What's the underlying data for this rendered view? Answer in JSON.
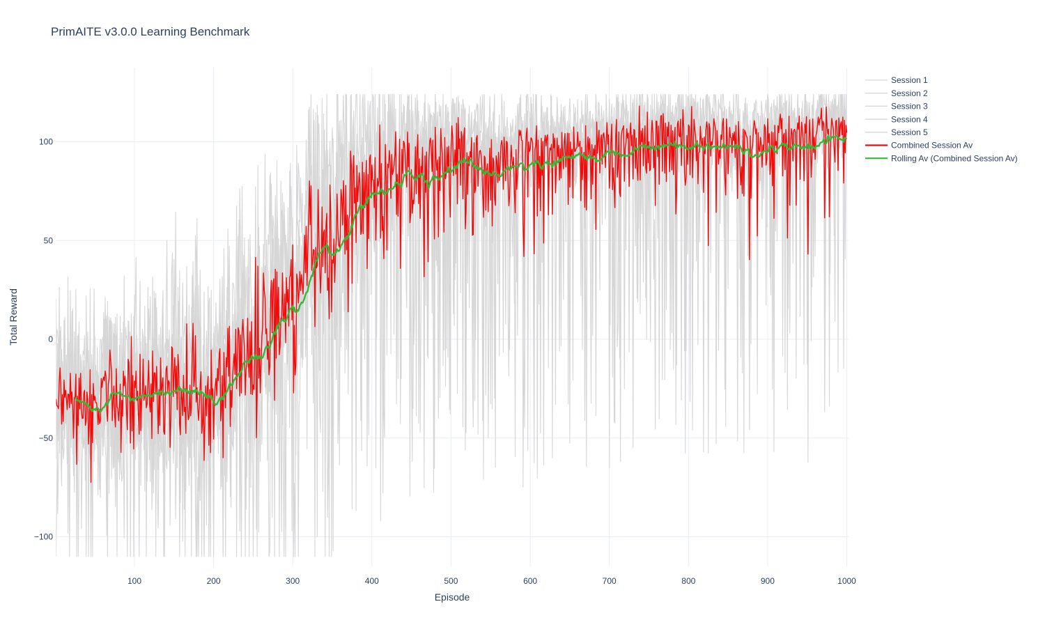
{
  "chart_data": {
    "type": "line",
    "title": "PrimAITE v3.0.0 Learning Benchmark",
    "xlabel": "Episode",
    "ylabel": "Total Reward",
    "legend_position": "right",
    "grid": true,
    "background": "#ffffff",
    "colors": {
      "text": "#2a3f5f",
      "grid": "#e8edf6",
      "session_gray": "#d6d6d6",
      "combined_red": "#f30b0b",
      "rolling_green": "#38b638"
    },
    "x_axis": {
      "label": "Episode",
      "ticks": [
        100,
        200,
        300,
        400,
        500,
        600,
        700,
        800,
        900,
        1000
      ],
      "range": [
        1,
        1000
      ]
    },
    "y_axis": {
      "label": "Total Reward",
      "ticks": [
        -100,
        -50,
        0,
        50,
        100
      ],
      "range": [
        -114,
        136
      ]
    },
    "series": [
      {
        "name": "Session 1",
        "color": "#d6d6d6",
        "width": 1.1,
        "role": "session",
        "seed": 11,
        "shift": -34
      },
      {
        "name": "Session 2",
        "color": "#d6d6d6",
        "width": 1.1,
        "role": "session",
        "seed": 23,
        "shift": -17
      },
      {
        "name": "Session 3",
        "color": "#d6d6d6",
        "width": 1.1,
        "role": "session",
        "seed": 37,
        "shift": 0
      },
      {
        "name": "Session 4",
        "color": "#d6d6d6",
        "width": 1.1,
        "role": "session",
        "seed": 51,
        "shift": 17
      },
      {
        "name": "Session 5",
        "color": "#d6d6d6",
        "width": 1.1,
        "role": "session",
        "seed": 73,
        "shift": 34
      },
      {
        "name": "Combined Session Av",
        "color": "#f30b0b",
        "width": 1.4,
        "role": "mean"
      },
      {
        "name": "Rolling Av (Combined Session Av)",
        "color": "#38b638",
        "width": 2.4,
        "role": "rolling"
      }
    ],
    "trend_keypoints": [
      [
        1,
        -31
      ],
      [
        25,
        -33
      ],
      [
        45,
        -30
      ],
      [
        60,
        -28
      ],
      [
        72,
        -31
      ],
      [
        90,
        -28
      ],
      [
        105,
        -27
      ],
      [
        125,
        -29
      ],
      [
        148,
        -23
      ],
      [
        165,
        -29
      ],
      [
        182,
        -27
      ],
      [
        200,
        -28
      ],
      [
        213,
        -25
      ],
      [
        226,
        -20
      ],
      [
        240,
        -13
      ],
      [
        255,
        -4
      ],
      [
        268,
        4
      ],
      [
        277,
        13
      ],
      [
        284,
        12
      ],
      [
        300,
        25
      ],
      [
        312,
        37
      ],
      [
        331,
        44
      ],
      [
        342,
        44
      ],
      [
        356,
        59
      ],
      [
        366,
        69
      ],
      [
        375,
        76
      ],
      [
        386,
        73
      ],
      [
        393,
        78
      ],
      [
        408,
        83
      ],
      [
        426,
        89
      ],
      [
        443,
        93
      ],
      [
        461,
        96
      ],
      [
        480,
        98
      ],
      [
        497,
        100
      ],
      [
        515,
        102
      ],
      [
        524,
        103
      ],
      [
        540,
        100
      ],
      [
        556,
        99
      ],
      [
        574,
        89
      ],
      [
        590,
        97
      ],
      [
        605,
        101
      ],
      [
        626,
        99
      ],
      [
        637,
        102
      ],
      [
        650,
        98
      ],
      [
        663,
        96
      ],
      [
        677,
        99
      ],
      [
        695,
        102
      ],
      [
        714,
        105
      ],
      [
        731,
        108
      ],
      [
        743,
        107
      ],
      [
        757,
        103
      ],
      [
        772,
        104
      ],
      [
        790,
        108
      ],
      [
        808,
        110
      ],
      [
        826,
        111
      ],
      [
        838,
        109
      ],
      [
        853,
        102
      ],
      [
        869,
        96
      ],
      [
        879,
        100
      ],
      [
        891,
        102
      ],
      [
        912,
        104
      ],
      [
        931,
        106
      ],
      [
        950,
        108
      ],
      [
        963,
        109
      ],
      [
        976,
        108
      ],
      [
        989,
        107
      ],
      [
        1000,
        107
      ]
    ],
    "generator": {
      "lag": 12,
      "rolling_window": 25,
      "sigma_keypoints": [
        [
          1,
          26
        ],
        [
          200,
          27
        ],
        [
          260,
          31
        ],
        [
          340,
          30
        ],
        [
          480,
          12
        ],
        [
          1000,
          10
        ]
      ],
      "spike_prob_keypoints": [
        [
          1,
          0.035
        ],
        [
          250,
          0.05
        ],
        [
          380,
          0.09
        ],
        [
          1000,
          0.09
        ]
      ],
      "spike_magnitude": [
        35,
        165
      ],
      "clip": [
        -110,
        124
      ]
    }
  }
}
